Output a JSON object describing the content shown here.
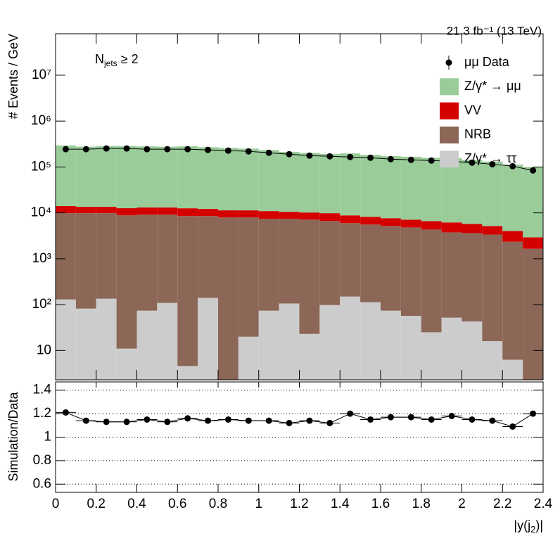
{
  "chart_data": [
    {
      "type": "stacked_histogram",
      "annotation": "21.3 fb⁻¹ (13 TeV)",
      "selection": {
        "parts": [
          "N",
          "jets",
          "≥ 2"
        ]
      },
      "y_label": "# Events / GeV",
      "log_y": true,
      "ylim": [
        2.3,
        80000000
      ],
      "yticks": [
        10,
        {
          "value": 100,
          "label": "10²"
        },
        {
          "value": 1000,
          "label": "10³"
        },
        {
          "value": 10000,
          "label": "10⁴"
        },
        {
          "value": 100000,
          "label": "10⁵"
        },
        {
          "value": 1000000,
          "label": "10⁶"
        },
        {
          "value": 10000000,
          "label": "10⁷"
        }
      ],
      "legend": "top-right",
      "bins": [
        0,
        0.1,
        0.2,
        0.3,
        0.4,
        0.5,
        0.6,
        0.7,
        0.8,
        0.9,
        1.0,
        1.1,
        1.2,
        1.3,
        1.4,
        1.5,
        1.6,
        1.7,
        1.8,
        1.9,
        2.0,
        2.1,
        2.2,
        2.3,
        2.4
      ],
      "series": [
        {
          "name": "Z/γ* → ττ",
          "color": "#cccccc",
          "values": [
            130,
            82,
            135,
            11,
            74,
            109,
            4.6,
            140,
            1,
            20,
            74,
            106,
            23,
            98,
            150,
            113,
            74,
            57,
            25,
            52,
            43,
            16,
            6.3,
            1
          ]
        },
        {
          "name": "NRB",
          "color": "#8c6656",
          "values": [
            9700,
            9750,
            9700,
            8820,
            9080,
            9040,
            8500,
            8370,
            7930,
            7910,
            7310,
            7270,
            7100,
            6540,
            5810,
            5440,
            5100,
            4750,
            4300,
            3700,
            3580,
            3350,
            2340,
            1650
          ]
        },
        {
          "name": "VV",
          "color": "#d40000",
          "values": [
            4230,
            3740,
            3740,
            3800,
            3930,
            3930,
            4080,
            3660,
            3410,
            3410,
            3540,
            3170,
            3060,
            3190,
            2860,
            2660,
            2480,
            2310,
            2290,
            2440,
            2140,
            1790,
            1670,
            1270
          ]
        },
        {
          "name": "Z/γ* → μμ",
          "color": "#99cc99",
          "values": [
            281000,
            264000,
            272000,
            273000,
            268000,
            263000,
            270000,
            257000,
            250000,
            239000,
            222000,
            202000,
            192000,
            182000,
            189000,
            175000,
            165000,
            160000,
            152000,
            151000,
            137000,
            126000,
            109000,
            98000
          ]
        }
      ],
      "data": {
        "name": "μμ Data",
        "color": "#000000",
        "values": [
          244000,
          244000,
          253000,
          253000,
          244000,
          244000,
          244000,
          236000,
          227000,
          219000,
          204000,
          190000,
          177000,
          171000,
          165000,
          159000,
          148000,
          143000,
          138000,
          133000,
          124000,
          115000,
          104000,
          84000
        ]
      }
    },
    {
      "type": "ratio",
      "y_label": "Simulation/Data",
      "x_label": {
        "parts": [
          "|y(j",
          "2",
          ")|"
        ]
      },
      "xlim": [
        0,
        2.4
      ],
      "xticks": [
        0,
        0.2,
        0.4,
        0.6,
        0.8,
        1,
        1.2,
        1.4,
        1.6,
        1.8,
        2,
        2.2,
        2.4
      ],
      "ylim": [
        0.53,
        1.47
      ],
      "yticks": [
        0.6,
        0.8,
        1,
        1.2,
        1.4
      ],
      "grid": true,
      "color": "#000000",
      "values": [
        1.21,
        1.14,
        1.13,
        1.13,
        1.15,
        1.13,
        1.16,
        1.14,
        1.15,
        1.14,
        1.14,
        1.12,
        1.14,
        1.12,
        1.2,
        1.15,
        1.17,
        1.17,
        1.15,
        1.18,
        1.15,
        1.14,
        1.09,
        1.2
      ]
    }
  ]
}
